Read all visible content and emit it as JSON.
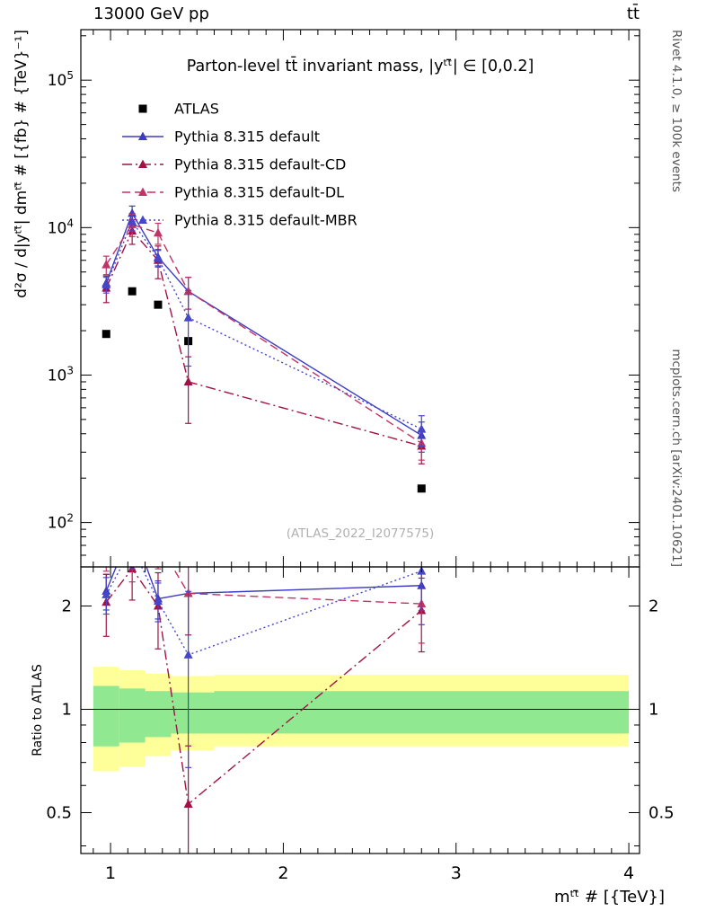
{
  "header": {
    "left": "13000 GeV pp",
    "right": "tt̄"
  },
  "rivet_note": "Rivet 4.1.0, ≥ 100k events",
  "mcplots_note": "mcplots.cern.ch [arXiv:2401.10621]",
  "watermark": "(ATLAS_2022_I2077575)",
  "chart_data": {
    "type": "line",
    "title": "Parton-level tt̄ invariant mass, |yᵗᵗ̄| ∈ [0,0.2]",
    "xlabel": "mᵗᵗ̄ # [{TeV}]",
    "ylabel_main": "d²σ / d|yᵗᵗ̄| dmᵗᵗ̄ # [{fb} # {TeV}⁻¹]",
    "ylabel_ratio": "Ratio to ATLAS",
    "scales": {
      "x": "linear",
      "y_main": "log",
      "y_ratio": "log",
      "grid": "off",
      "legend_position": "top-left"
    },
    "x": [
      0.975,
      1.125,
      1.275,
      1.45,
      2.8
    ],
    "xlim": [
      0.828,
      4.062
    ],
    "ylim_main": [
      50,
      220000
    ],
    "ylim_ratio": [
      0.38,
      2.6
    ],
    "x_ticks": [
      1,
      2,
      3,
      4
    ],
    "y_ticks_main": [
      100,
      1000,
      10000,
      100000
    ],
    "y_ticks_ratio": [
      0.5,
      1,
      2
    ],
    "ratio_reference": "ATLAS",
    "series": [
      {
        "name": "ATLAS",
        "color": "#000000",
        "marker": "square",
        "line": "none",
        "values": [
          1900,
          3700,
          3000,
          1700,
          170
        ],
        "errors": [
          0,
          0,
          0,
          0,
          0
        ]
      },
      {
        "name": "Pythia 8.315 default",
        "color": "#3b3bc4",
        "marker": "triangle",
        "line": "solid",
        "values": [
          4200,
          12500,
          6300,
          3700,
          390
        ],
        "errors": [
          500,
          1500,
          800,
          900,
          90
        ]
      },
      {
        "name": "Pythia 8.315 default-CD",
        "color": "#a01246",
        "marker": "triangle",
        "line": "dashdot",
        "values": [
          3900,
          9500,
          6000,
          900,
          330
        ],
        "errors": [
          800,
          1800,
          1500,
          430,
          80
        ]
      },
      {
        "name": "Pythia 8.315 default-DL",
        "color": "#c03366",
        "marker": "triangle",
        "line": "dashed",
        "values": [
          5600,
          10500,
          9200,
          3700,
          345
        ],
        "errors": [
          800,
          1800,
          1500,
          900,
          80
        ]
      },
      {
        "name": "Pythia 8.315 default-MBR",
        "color": "#4646c8",
        "marker": "triangle",
        "line": "dotted",
        "values": [
          4100,
          11000,
          6200,
          2450,
          430
        ],
        "errors": [
          500,
          1500,
          800,
          1300,
          100
        ]
      }
    ],
    "bands": {
      "yellow_color": "#ffff99",
      "green_color": "#90e890",
      "edges": [
        0.9,
        1.05,
        1.2,
        1.35,
        1.6,
        4.0
      ],
      "yellow": [
        [
          0.66,
          1.33
        ],
        [
          0.68,
          1.3
        ],
        [
          0.73,
          1.27
        ],
        [
          0.76,
          1.25
        ],
        [
          0.78,
          1.26
        ]
      ],
      "green": [
        [
          0.78,
          1.17
        ],
        [
          0.8,
          1.15
        ],
        [
          0.83,
          1.13
        ],
        [
          0.85,
          1.12
        ],
        [
          0.85,
          1.13
        ]
      ]
    }
  }
}
